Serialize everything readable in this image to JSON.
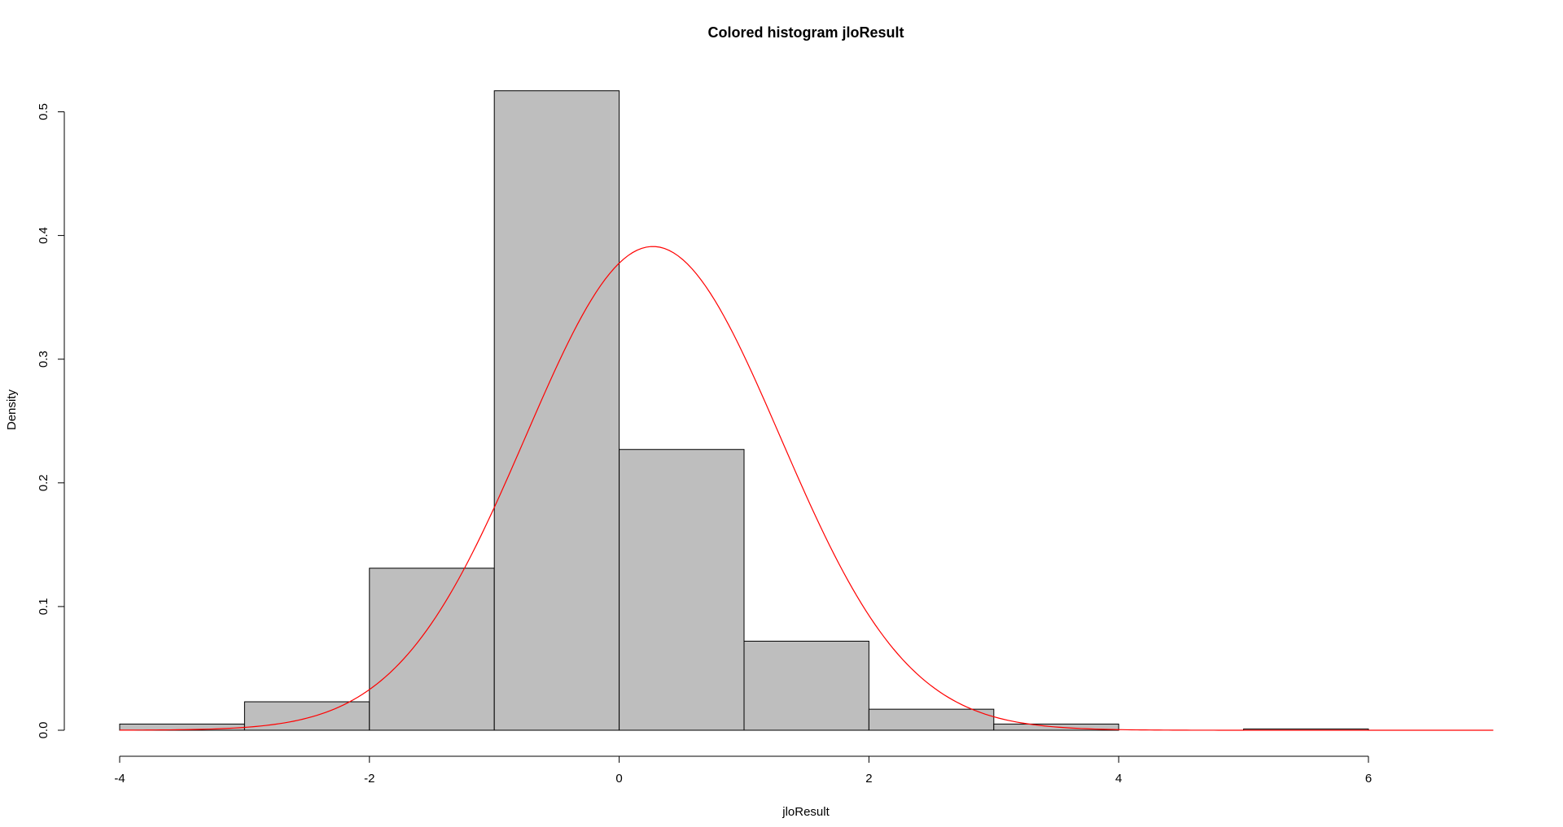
{
  "chart_data": {
    "type": "bar",
    "title": "Colored histogram jloResult",
    "xlabel": "jloResult",
    "ylabel": "Density",
    "xlim": [
      -4,
      7
    ],
    "ylim": [
      0,
      0.52
    ],
    "x_ticks": [
      -4,
      -2,
      0,
      2,
      4,
      6
    ],
    "y_ticks": [
      0.0,
      0.1,
      0.2,
      0.3,
      0.4,
      0.5
    ],
    "x_tick_labels": [
      "-4",
      "-2",
      "0",
      "2",
      "4",
      "6"
    ],
    "y_tick_labels": [
      "0.0",
      "0.1",
      "0.2",
      "0.3",
      "0.4",
      "0.5"
    ],
    "bins": [
      {
        "from": -4,
        "to": -3,
        "density": 0.005
      },
      {
        "from": -3,
        "to": -2,
        "density": 0.023
      },
      {
        "from": -2,
        "to": -1,
        "density": 0.131
      },
      {
        "from": -1,
        "to": 0,
        "density": 0.517
      },
      {
        "from": 0,
        "to": 1,
        "density": 0.227
      },
      {
        "from": 1,
        "to": 2,
        "density": 0.072
      },
      {
        "from": 2,
        "to": 3,
        "density": 0.017
      },
      {
        "from": 3,
        "to": 4,
        "density": 0.005
      },
      {
        "from": 4,
        "to": 5,
        "density": 0.0
      },
      {
        "from": 5,
        "to": 6,
        "density": 0.001
      }
    ],
    "curve": {
      "type": "normal-density",
      "color": "#ff0000",
      "mean": 0.27,
      "sd": 1.02,
      "x_range": [
        -4,
        7
      ]
    },
    "bar_fill": "#bebebe",
    "bar_stroke": "#000000"
  }
}
